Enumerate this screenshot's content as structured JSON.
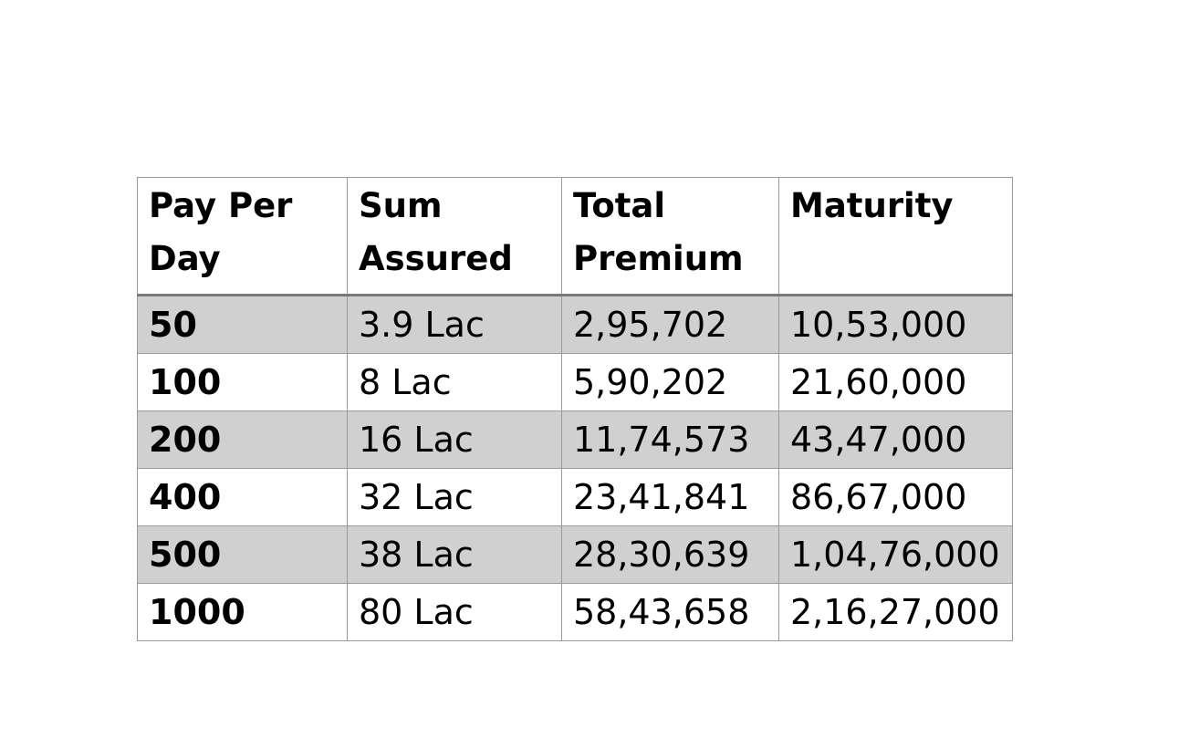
{
  "table": {
    "headers": [
      "Pay Per Day",
      "Sum Assured",
      "Total Premium",
      "Maturity"
    ],
    "rows": [
      [
        "50",
        "3.9 Lac",
        "2,95,702",
        "10,53,000"
      ],
      [
        "100",
        "8 Lac",
        "5,90,202",
        "21,60,000"
      ],
      [
        "200",
        "16 Lac",
        "11,74,573",
        "43,47,000"
      ],
      [
        "400",
        "32 Lac",
        "23,41,841",
        "86,67,000"
      ],
      [
        "500",
        "38 Lac",
        "28,30,639",
        "1,04,76,000"
      ],
      [
        "1000",
        "80 Lac",
        "58,43,658",
        "2,16,27,000"
      ]
    ],
    "shaded_row_color": "#d0d0d0",
    "border_color": "#9a9a9a"
  }
}
